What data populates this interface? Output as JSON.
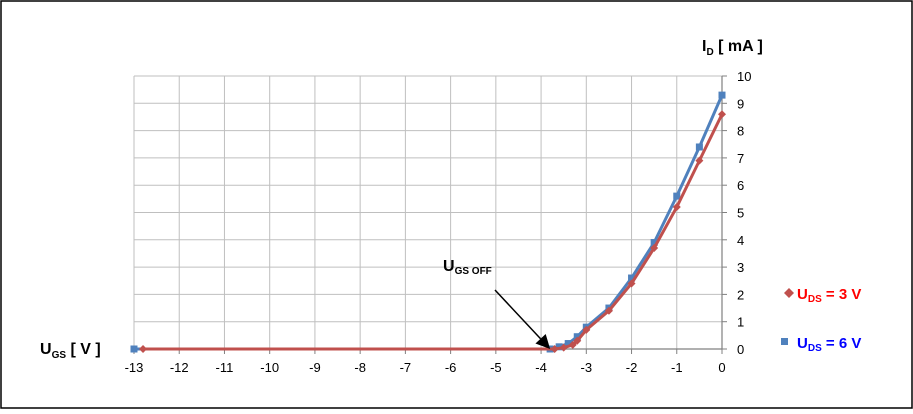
{
  "chart_data": {
    "type": "line",
    "title": "",
    "xlabel": {
      "main": "U",
      "sub": "GS",
      "unit": "[ V ]"
    },
    "ylabel": {
      "main": "I",
      "sub": "D",
      "unit": "[ mA ]"
    },
    "xlim": [
      -13,
      0
    ],
    "ylim": [
      0,
      10
    ],
    "x_ticks": [
      -13,
      -12,
      -11,
      -10,
      -9,
      -8,
      -7,
      -6,
      -5,
      -4,
      -3,
      -2,
      -1,
      0
    ],
    "y_ticks": [
      0,
      1,
      2,
      3,
      4,
      5,
      6,
      7,
      8,
      9,
      10
    ],
    "grid": true,
    "legend_position": "right",
    "series": [
      {
        "name": "UDS = 3 V",
        "legend": {
          "main": "U",
          "sub": "DS",
          "rest": " = 3 V"
        },
        "color": "#c0504d",
        "marker": "diamond",
        "x": [
          -12.8,
          -3.7,
          -3.5,
          -3.3,
          -3.2,
          -3.0,
          -2.5,
          -2.0,
          -1.5,
          -1.0,
          -0.5,
          0
        ],
        "y": [
          0,
          0,
          0.05,
          0.15,
          0.3,
          0.7,
          1.4,
          2.4,
          3.7,
          5.2,
          6.9,
          8.6
        ]
      },
      {
        "name": "UDS = 6 V",
        "legend": {
          "main": "U",
          "sub": "DS",
          "rest": " = 6 V"
        },
        "color": "#4f81bd",
        "marker": "square",
        "x": [
          -13.0,
          -3.8,
          -3.6,
          -3.4,
          -3.2,
          -3.0,
          -2.5,
          -2.0,
          -1.5,
          -1.0,
          -0.5,
          0
        ],
        "y": [
          0,
          0,
          0.08,
          0.2,
          0.45,
          0.8,
          1.5,
          2.6,
          3.9,
          5.6,
          7.4,
          9.3
        ]
      }
    ],
    "annotation": {
      "text_main": "U",
      "text_sub": "GS OFF",
      "arrow_to": {
        "x": -3.8,
        "y": 0
      }
    }
  },
  "colors": {
    "axis": "#808080",
    "grid": "#bfbfbf",
    "legend_red": "#ff0000",
    "legend_blue": "#0000ff"
  }
}
